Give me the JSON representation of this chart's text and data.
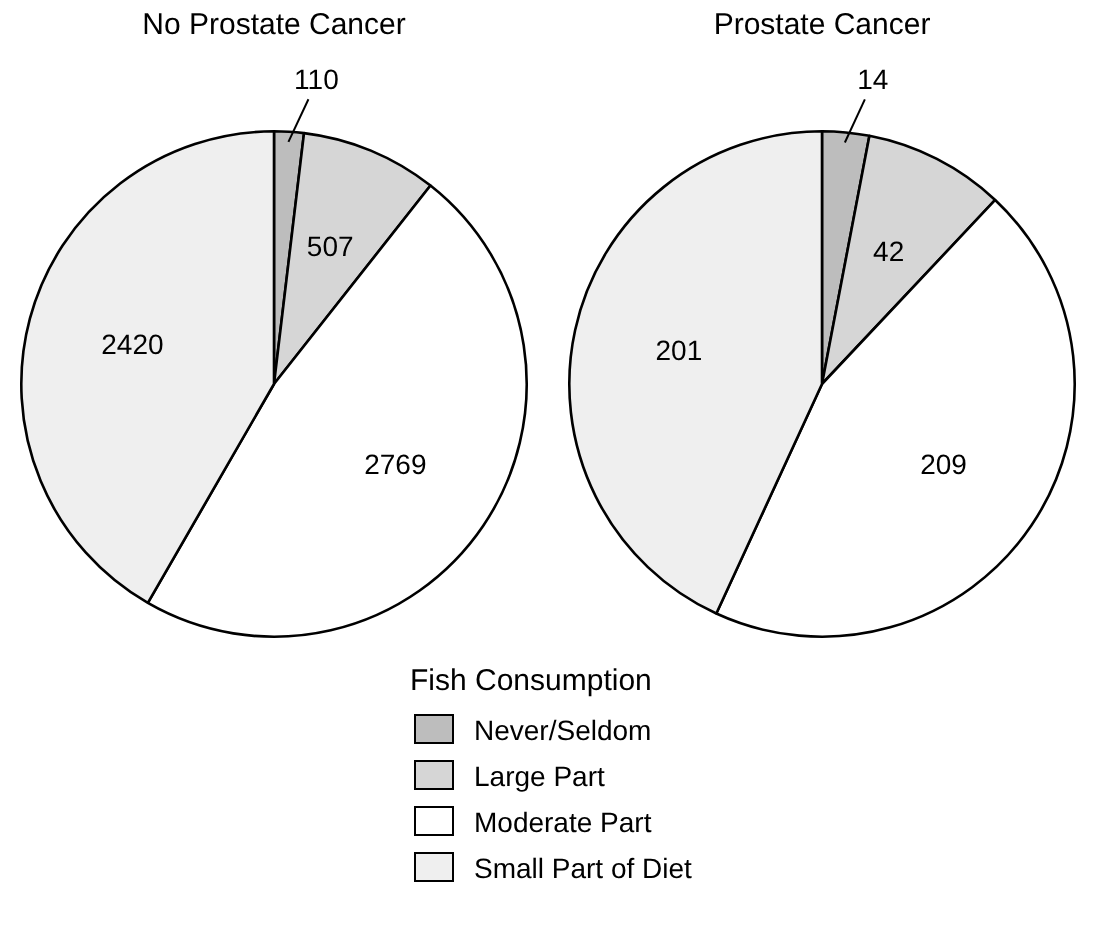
{
  "chart_data": [
    {
      "type": "pie",
      "title": "No Prostate Cancer",
      "categories": [
        "Never/Seldom",
        "Large Part",
        "Moderate Part",
        "Small Part of Diet"
      ],
      "values": [
        110,
        507,
        2769,
        2420
      ],
      "colors": [
        "#bdbdbd",
        "#d6d6d6",
        "#ffffff",
        "#efefef"
      ],
      "data_labels": true,
      "legend": "bottom",
      "legend_title": "Fish Consumption"
    },
    {
      "type": "pie",
      "title": "Prostate Cancer",
      "categories": [
        null,
        null,
        null,
        null
      ],
      "values": [
        14,
        42,
        209,
        201
      ],
      "colors": [
        "#bdbdbd",
        "#d6d6d6",
        "#ffffff",
        "#efefef"
      ],
      "data_labels": true
    }
  ]
}
